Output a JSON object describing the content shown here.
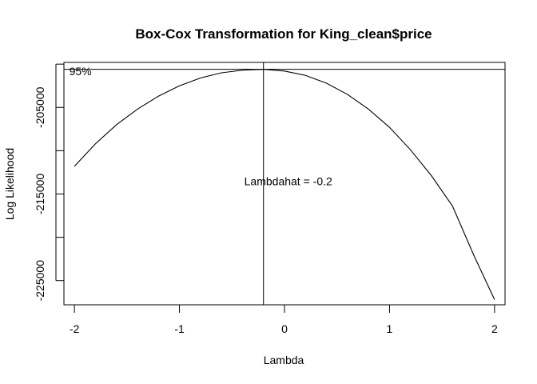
{
  "chart_data": {
    "type": "line",
    "title": "Box-Cox Transformation for King_clean$price",
    "xlabel": "Lambda",
    "ylabel": "Log Likelihood",
    "xlim": [
      -2.1,
      2.1
    ],
    "ylim": [
      -227800,
      -199800
    ],
    "x_ticks": [
      -2,
      -1,
      0,
      1,
      2
    ],
    "x_tick_labels": [
      "-2",
      "-1",
      "0",
      "1",
      "2"
    ],
    "y_ticks": [
      -205000,
      -215000,
      -225000
    ],
    "y_tick_labels": [
      "-205000",
      "-215000",
      "-225000"
    ],
    "y_minor_ticks": [
      -200000,
      -210000,
      -220000
    ],
    "grid": false,
    "series": [
      {
        "x": [
          -2.0,
          -1.8,
          -1.6,
          -1.4,
          -1.2,
          -1.0,
          -0.8,
          -0.6,
          -0.4,
          -0.2,
          0.0,
          0.2,
          0.4,
          0.6,
          0.8,
          1.0,
          1.2,
          1.4,
          1.6,
          1.8,
          2.0
        ],
        "y": [
          -211800,
          -209200,
          -207000,
          -205200,
          -203700,
          -202500,
          -201600,
          -201000,
          -200700,
          -200600,
          -200800,
          -201300,
          -202200,
          -203500,
          -205200,
          -207300,
          -209900,
          -212900,
          -216400,
          -222000,
          -227200
        ]
      }
    ],
    "vline": {
      "x": -0.2
    },
    "hline": {
      "y": -200600
    },
    "annotations": [
      {
        "text": "95%",
        "x": -2.05,
        "y": -200800
      },
      {
        "text": "Lambdahat = -0.2",
        "x": -0.2,
        "y": -214000
      }
    ]
  }
}
